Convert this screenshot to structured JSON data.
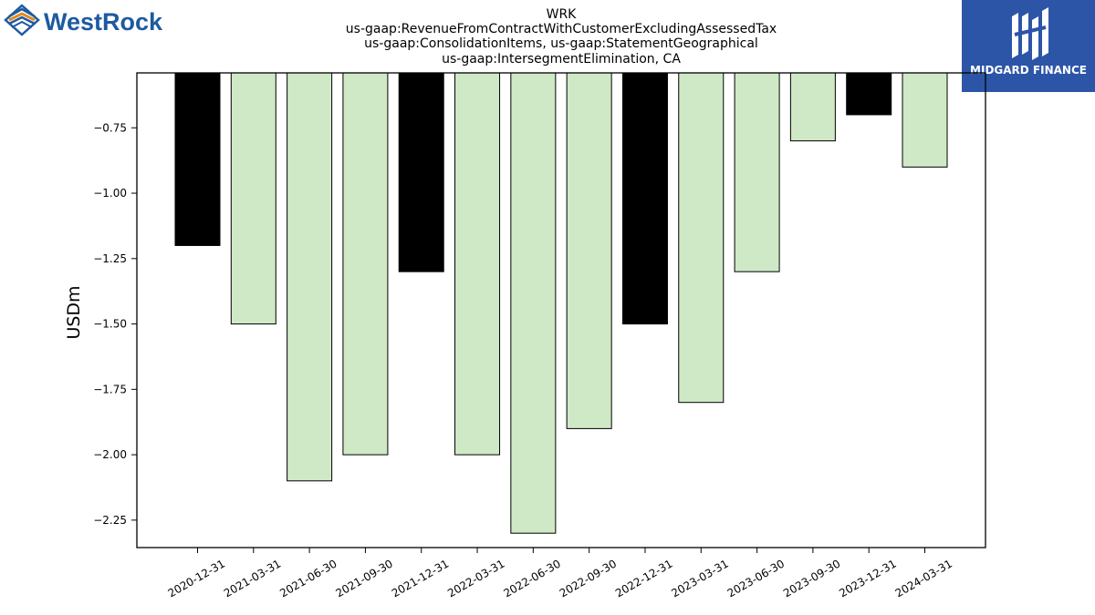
{
  "logos": {
    "left_text": "WestRock",
    "right_text": "MIDGARD FINANCE"
  },
  "colors": {
    "highlight_bar": "#000000",
    "normal_bar": "#cfe9c7",
    "bar_edge": "#000000",
    "westrock_blue": "#1d5aa0",
    "westrock_orange": "#e5891f",
    "midgard_bg": "#2c55a8"
  },
  "chart_data": {
    "type": "bar",
    "title": [
      "WRK",
      "us-gaap:RevenueFromContractWithCustomerExcludingAssessedTax",
      "us-gaap:ConsolidationItems, us-gaap:StatementGeographical",
      "us-gaap:IntersegmentElimination, CA"
    ],
    "xlabel": "",
    "ylabel": "USDm",
    "categories": [
      "2020-12-31",
      "2021-03-31",
      "2021-06-30",
      "2021-09-30",
      "2021-12-31",
      "2022-03-31",
      "2022-06-30",
      "2022-09-30",
      "2022-12-31",
      "2023-03-31",
      "2023-06-30",
      "2023-09-30",
      "2023-12-31",
      "2024-03-31"
    ],
    "values": [
      -1.2,
      -1.5,
      -2.1,
      -2.0,
      -1.3,
      -2.0,
      -2.3,
      -1.9,
      -1.5,
      -1.8,
      -1.3,
      -0.8,
      -0.7,
      -0.9
    ],
    "highlighted": [
      true,
      false,
      false,
      false,
      true,
      false,
      false,
      false,
      true,
      false,
      false,
      false,
      true,
      false
    ],
    "ylim": [
      -2.355,
      -0.54
    ],
    "yticks": [
      -0.75,
      -1.0,
      -1.25,
      -1.5,
      -1.75,
      -2.0,
      -2.25
    ],
    "ytick_labels": [
      "−0.75",
      "−1.00",
      "−1.25",
      "−1.50",
      "−1.75",
      "−2.00",
      "−2.25"
    ],
    "grid": false,
    "legend": "none"
  }
}
